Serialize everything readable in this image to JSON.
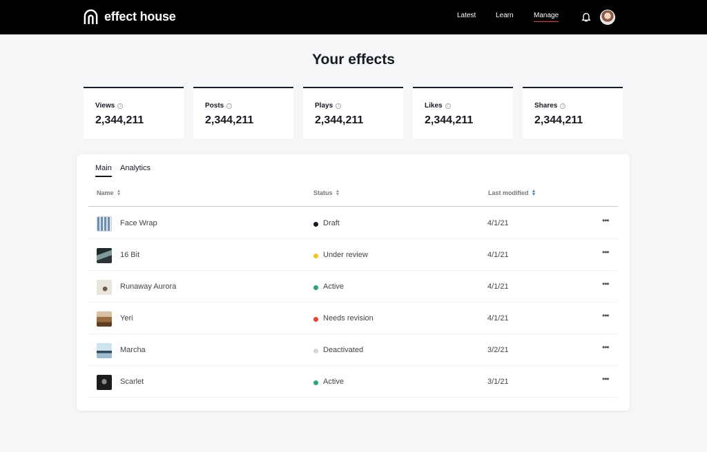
{
  "brand": {
    "name": "effect house",
    "logo_icon": "arch-logo-icon"
  },
  "nav": {
    "latest": "Latest",
    "learn": "Learn",
    "manage": "Manage",
    "notification_icon": "bell-icon",
    "accent": "#fe2c55"
  },
  "page": {
    "title": "Your effects"
  },
  "stats": [
    {
      "label": "Views",
      "value": "2,344,211"
    },
    {
      "label": "Posts",
      "value": "2,344,211"
    },
    {
      "label": "Plays",
      "value": "2,344,211"
    },
    {
      "label": "Likes",
      "value": "2,344,211"
    },
    {
      "label": "Shares",
      "value": "2,344,211"
    }
  ],
  "tabs": {
    "main": "Main",
    "analytics": "Analytics",
    "selected": "Main"
  },
  "table": {
    "columns": {
      "name": "Name",
      "status": "Status",
      "modified": "Last modified",
      "sorted_by": "Last modified"
    },
    "rows": [
      {
        "name": "Face Wrap",
        "status": "Draft",
        "status_color": "#161823",
        "modified": "4/1/21"
      },
      {
        "name": "16 Bit",
        "status": "Under review",
        "status_color": "#f5c518",
        "modified": "4/1/21"
      },
      {
        "name": "Runaway Aurora",
        "status": "Active",
        "status_color": "#2aa876",
        "modified": "4/1/21"
      },
      {
        "name": "Yeri",
        "status": "Needs revision",
        "status_color": "#f0402e",
        "modified": "4/1/21"
      },
      {
        "name": "Marcha",
        "status": "Deactivated",
        "status_color": "#d4d5d8",
        "modified": "3/2/21"
      },
      {
        "name": "Scarlet",
        "status": "Active",
        "status_color": "#2aa876",
        "modified": "3/1/21"
      }
    ],
    "more_label": "•••",
    "more_icon": "more-horizontal-icon"
  }
}
